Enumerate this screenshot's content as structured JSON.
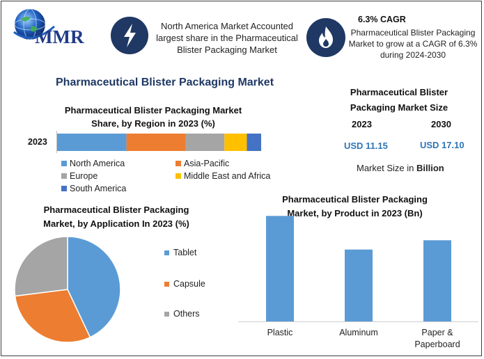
{
  "header": {
    "logo_text": "MMR",
    "info1": "North America Market Accounted largest share in the Pharmaceutical Blister Packaging Market",
    "cagr_title": "6.3% CAGR",
    "cagr_text": "Pharmaceutical Blister Packaging Market to grow at a CAGR of 6.3% during 2024-2030"
  },
  "main_title": "Pharmaceutical Blister Packaging Market",
  "market_size": {
    "title": "Pharmaceutical Blister Packaging Market Size",
    "year1": "2023",
    "year2": "2030",
    "value1": "USD 11.15",
    "value2": "USD 17.10",
    "note_prefix": "Market Size in ",
    "note_unit": "Billion"
  },
  "colors": {
    "blue": "#5b9bd5",
    "orange": "#ed7d31",
    "gray": "#a5a5a5",
    "yellow": "#ffc000",
    "darkblue": "#4472c4"
  },
  "chart_data": [
    {
      "type": "bar",
      "orientation": "horizontal-stacked",
      "title": "Pharmaceutical Blister Packaging Market Share, by Region in 2023 (%)",
      "categories": [
        "2023"
      ],
      "series": [
        {
          "name": "North America",
          "values": [
            34
          ]
        },
        {
          "name": "Asia-Pacific",
          "values": [
            29
          ]
        },
        {
          "name": "Europe",
          "values": [
            19
          ]
        },
        {
          "name": "Middle East and Africa",
          "values": [
            11
          ]
        },
        {
          "name": "South America",
          "values": [
            7
          ]
        }
      ],
      "legend": "bottom"
    },
    {
      "type": "pie",
      "title": "Pharmaceutical Blister Packaging Market, by Application In 2023 (%)",
      "categories": [
        "Tablet",
        "Capsule",
        "Others"
      ],
      "values": [
        43,
        30,
        27
      ],
      "legend": "right"
    },
    {
      "type": "bar",
      "title": "Pharmaceutical Blister Packaging Market, by Product in 2023 (Bn)",
      "categories": [
        "Plastic",
        "Aluminum",
        "Paper & Paperboard"
      ],
      "values": [
        4.55,
        3.1,
        3.5
      ],
      "ylim": [
        0,
        4.8
      ],
      "grid": false
    }
  ]
}
